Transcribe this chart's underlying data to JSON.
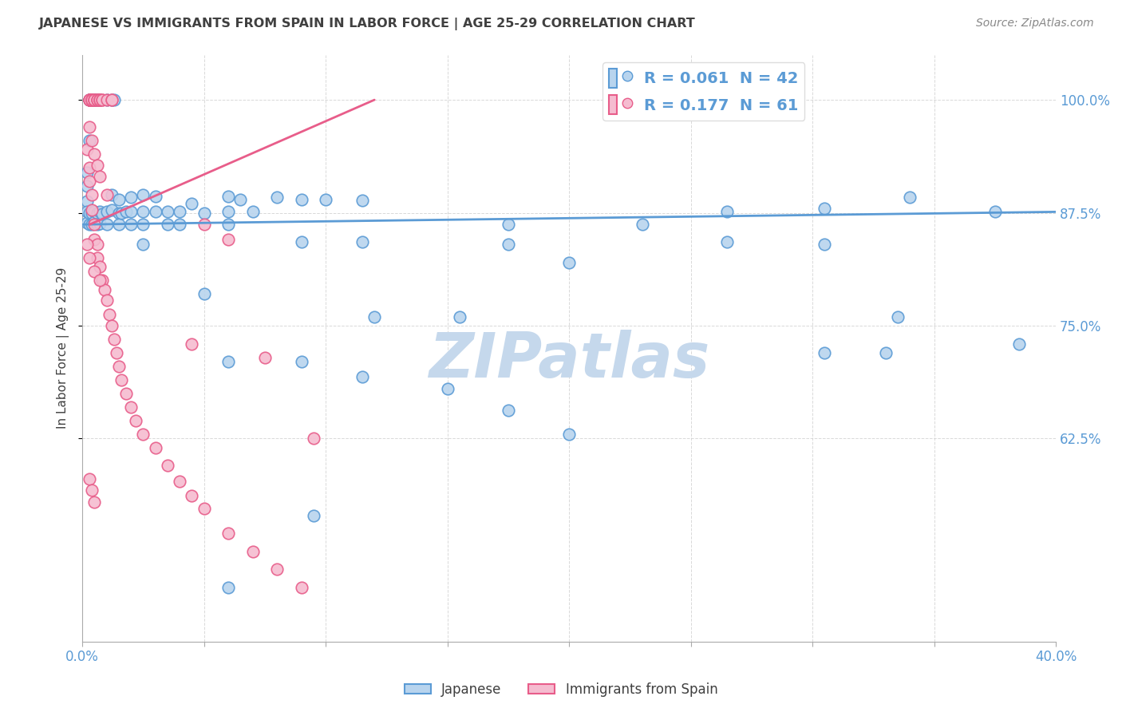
{
  "title": "JAPANESE VS IMMIGRANTS FROM SPAIN IN LABOR FORCE | AGE 25-29 CORRELATION CHART",
  "source": "Source: ZipAtlas.com",
  "ylabel": "In Labor Force | Age 25-29",
  "watermark": "ZIPatlas",
  "xlim": [
    0.0,
    0.4
  ],
  "ylim": [
    0.4,
    1.05
  ],
  "xtick_positions": [
    0.0,
    0.05,
    0.1,
    0.15,
    0.2,
    0.25,
    0.3,
    0.35,
    0.4
  ],
  "xtick_labels": [
    "0.0%",
    "",
    "",
    "",
    "",
    "",
    "",
    "",
    "40.0%"
  ],
  "ytick_positions": [
    0.625,
    0.75,
    0.875,
    1.0
  ],
  "ytick_labels": [
    "62.5%",
    "75.0%",
    "87.5%",
    "100.0%"
  ],
  "japanese_scatter": [
    [
      0.003,
      1.0
    ],
    [
      0.003,
      1.0
    ],
    [
      0.003,
      1.0
    ],
    [
      0.004,
      1.0
    ],
    [
      0.004,
      1.0
    ],
    [
      0.005,
      1.0
    ],
    [
      0.005,
      1.0
    ],
    [
      0.005,
      1.0
    ],
    [
      0.006,
      1.0
    ],
    [
      0.006,
      1.0
    ],
    [
      0.007,
      1.0
    ],
    [
      0.01,
      1.0
    ],
    [
      0.012,
      1.0
    ],
    [
      0.013,
      1.0
    ],
    [
      0.003,
      0.955
    ],
    [
      0.002,
      0.92
    ],
    [
      0.002,
      0.905
    ],
    [
      0.002,
      0.888
    ],
    [
      0.002,
      0.876
    ],
    [
      0.002,
      0.864
    ],
    [
      0.003,
      0.875
    ],
    [
      0.003,
      0.862
    ],
    [
      0.004,
      0.875
    ],
    [
      0.004,
      0.862
    ],
    [
      0.005,
      0.876
    ],
    [
      0.005,
      0.865
    ],
    [
      0.006,
      0.875
    ],
    [
      0.006,
      0.862
    ],
    [
      0.007,
      0.876
    ],
    [
      0.007,
      0.863
    ],
    [
      0.008,
      0.874
    ],
    [
      0.01,
      0.876
    ],
    [
      0.01,
      0.862
    ],
    [
      0.012,
      0.878
    ],
    [
      0.015,
      0.875
    ],
    [
      0.015,
      0.862
    ],
    [
      0.016,
      0.875
    ],
    [
      0.018,
      0.876
    ],
    [
      0.02,
      0.876
    ],
    [
      0.02,
      0.862
    ],
    [
      0.025,
      0.876
    ],
    [
      0.025,
      0.862
    ],
    [
      0.03,
      0.876
    ],
    [
      0.035,
      0.876
    ],
    [
      0.035,
      0.862
    ],
    [
      0.04,
      0.876
    ],
    [
      0.04,
      0.862
    ],
    [
      0.05,
      0.875
    ],
    [
      0.06,
      0.876
    ],
    [
      0.07,
      0.876
    ],
    [
      0.012,
      0.895
    ],
    [
      0.015,
      0.89
    ],
    [
      0.02,
      0.892
    ],
    [
      0.025,
      0.895
    ],
    [
      0.03,
      0.893
    ],
    [
      0.045,
      0.885
    ],
    [
      0.06,
      0.893
    ],
    [
      0.065,
      0.89
    ],
    [
      0.08,
      0.892
    ],
    [
      0.09,
      0.89
    ],
    [
      0.1,
      0.89
    ],
    [
      0.115,
      0.889
    ],
    [
      0.175,
      0.862
    ],
    [
      0.265,
      0.876
    ],
    [
      0.305,
      0.88
    ],
    [
      0.34,
      0.892
    ],
    [
      0.375,
      0.876
    ],
    [
      0.025,
      0.84
    ],
    [
      0.06,
      0.862
    ],
    [
      0.09,
      0.843
    ],
    [
      0.115,
      0.843
    ],
    [
      0.175,
      0.84
    ],
    [
      0.23,
      0.862
    ],
    [
      0.265,
      0.843
    ],
    [
      0.305,
      0.84
    ],
    [
      0.2,
      0.82
    ],
    [
      0.05,
      0.785
    ],
    [
      0.12,
      0.76
    ],
    [
      0.155,
      0.76
    ],
    [
      0.335,
      0.76
    ],
    [
      0.305,
      0.72
    ],
    [
      0.33,
      0.72
    ],
    [
      0.385,
      0.73
    ],
    [
      0.06,
      0.71
    ],
    [
      0.09,
      0.71
    ],
    [
      0.115,
      0.693
    ],
    [
      0.15,
      0.68
    ],
    [
      0.175,
      0.656
    ],
    [
      0.2,
      0.63
    ],
    [
      0.095,
      0.54
    ],
    [
      0.06,
      0.46
    ]
  ],
  "spain_scatter": [
    [
      0.003,
      1.0
    ],
    [
      0.003,
      1.0
    ],
    [
      0.003,
      1.0
    ],
    [
      0.003,
      1.0
    ],
    [
      0.004,
      1.0
    ],
    [
      0.004,
      1.0
    ],
    [
      0.004,
      1.0
    ],
    [
      0.004,
      1.0
    ],
    [
      0.005,
      1.0
    ],
    [
      0.005,
      1.0
    ],
    [
      0.005,
      1.0
    ],
    [
      0.006,
      1.0
    ],
    [
      0.006,
      1.0
    ],
    [
      0.006,
      1.0
    ],
    [
      0.007,
      1.0
    ],
    [
      0.007,
      1.0
    ],
    [
      0.007,
      1.0
    ],
    [
      0.008,
      1.0
    ],
    [
      0.008,
      1.0
    ],
    [
      0.01,
      1.0
    ],
    [
      0.012,
      1.0
    ],
    [
      0.012,
      1.0
    ],
    [
      0.002,
      0.945
    ],
    [
      0.003,
      0.925
    ],
    [
      0.003,
      0.91
    ],
    [
      0.004,
      0.895
    ],
    [
      0.004,
      0.878
    ],
    [
      0.005,
      0.862
    ],
    [
      0.005,
      0.845
    ],
    [
      0.006,
      0.84
    ],
    [
      0.006,
      0.825
    ],
    [
      0.007,
      0.815
    ],
    [
      0.008,
      0.8
    ],
    [
      0.009,
      0.79
    ],
    [
      0.01,
      0.778
    ],
    [
      0.011,
      0.762
    ],
    [
      0.012,
      0.75
    ],
    [
      0.013,
      0.735
    ],
    [
      0.014,
      0.72
    ],
    [
      0.015,
      0.705
    ],
    [
      0.016,
      0.69
    ],
    [
      0.018,
      0.675
    ],
    [
      0.02,
      0.66
    ],
    [
      0.022,
      0.645
    ],
    [
      0.025,
      0.63
    ],
    [
      0.03,
      0.615
    ],
    [
      0.035,
      0.595
    ],
    [
      0.04,
      0.578
    ],
    [
      0.045,
      0.562
    ],
    [
      0.05,
      0.548
    ],
    [
      0.06,
      0.52
    ],
    [
      0.07,
      0.5
    ],
    [
      0.08,
      0.48
    ],
    [
      0.09,
      0.46
    ],
    [
      0.003,
      0.97
    ],
    [
      0.004,
      0.955
    ],
    [
      0.005,
      0.94
    ],
    [
      0.006,
      0.928
    ],
    [
      0.007,
      0.915
    ],
    [
      0.01,
      0.895
    ],
    [
      0.05,
      0.862
    ],
    [
      0.06,
      0.845
    ],
    [
      0.002,
      0.84
    ],
    [
      0.003,
      0.825
    ],
    [
      0.005,
      0.81
    ],
    [
      0.007,
      0.8
    ],
    [
      0.045,
      0.73
    ],
    [
      0.075,
      0.715
    ],
    [
      0.095,
      0.625
    ],
    [
      0.003,
      0.58
    ],
    [
      0.004,
      0.568
    ],
    [
      0.005,
      0.555
    ]
  ],
  "japanese_line": {
    "x": [
      0.0,
      0.4
    ],
    "y": [
      0.862,
      0.876
    ]
  },
  "spain_line": {
    "x": [
      0.003,
      0.12
    ],
    "y": [
      0.862,
      1.0
    ]
  },
  "japan_color": "#5b9bd5",
  "japan_fill": "#b8d4ee",
  "spain_color": "#e85d8a",
  "spain_fill": "#f5bcd0",
  "title_color": "#404040",
  "axis_color": "#5b9bd5",
  "grid_color": "#d0d0d0",
  "watermark_color": "#c5d8ec",
  "background_color": "#ffffff"
}
